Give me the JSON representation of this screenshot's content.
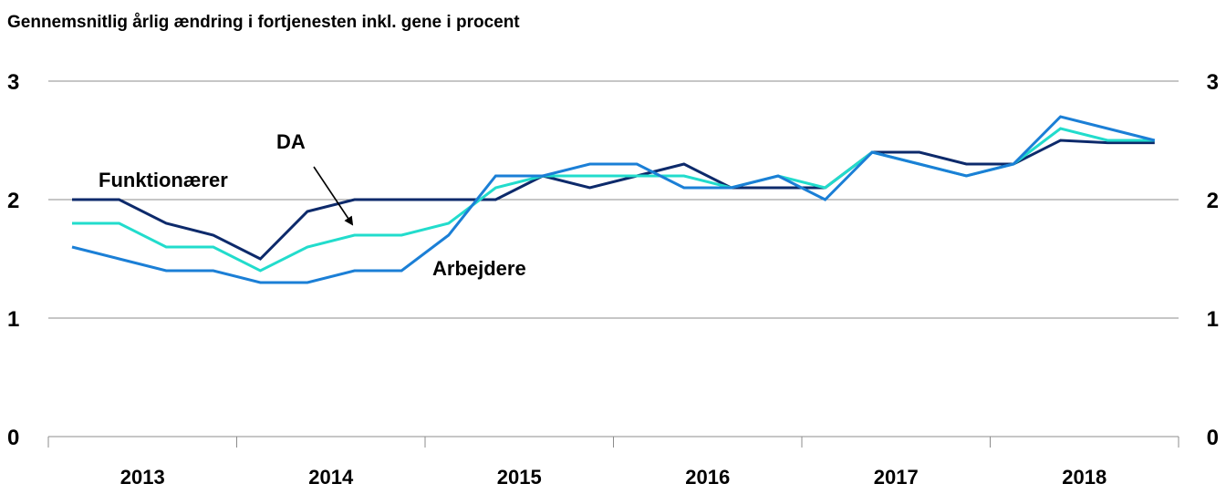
{
  "chart_data": {
    "type": "line",
    "title": "Gennemsnitlig årlig ændring i fortjenesten inkl. gene i procent",
    "xlabel": "",
    "ylabel": "",
    "ylim": [
      0,
      3
    ],
    "yticks": [
      "0",
      "1",
      "2",
      "3"
    ],
    "year_labels": [
      "2013",
      "2014",
      "2015",
      "2016",
      "2017",
      "2018"
    ],
    "x": [
      "2013K1",
      "2013K2",
      "2013K3",
      "2013K4",
      "2014K1",
      "2014K2",
      "2014K3",
      "2014K4",
      "2015K1",
      "2015K2",
      "2015K3",
      "2015K4",
      "2016K1",
      "2016K2",
      "2016K3",
      "2016K4",
      "2017K1",
      "2017K2",
      "2017K3",
      "2017K4",
      "2018K1",
      "2018K2",
      "2018K3",
      "2018K4"
    ],
    "grid": true,
    "legend": "none",
    "series": [
      {
        "name": "Funktionærer",
        "color": "#0d2a6b",
        "values": [
          2.0,
          2.0,
          1.8,
          1.7,
          1.5,
          1.9,
          2.0,
          2.0,
          2.0,
          2.0,
          2.2,
          2.1,
          2.2,
          2.3,
          2.1,
          2.1,
          2.1,
          2.4,
          2.4,
          2.3,
          2.3,
          2.5,
          2.48,
          2.48
        ]
      },
      {
        "name": "DA",
        "color": "#22dccc",
        "values": [
          1.8,
          1.8,
          1.6,
          1.6,
          1.4,
          1.6,
          1.7,
          1.7,
          1.8,
          2.1,
          2.2,
          2.2,
          2.2,
          2.2,
          2.1,
          2.2,
          2.1,
          2.4,
          2.3,
          2.2,
          2.3,
          2.6,
          2.5,
          2.5
        ]
      },
      {
        "name": "Arbejdere",
        "color": "#1b7fd6",
        "values": [
          1.6,
          1.5,
          1.4,
          1.4,
          1.3,
          1.3,
          1.4,
          1.4,
          1.7,
          2.2,
          2.2,
          2.3,
          2.3,
          2.1,
          2.1,
          2.2,
          2.0,
          2.4,
          2.3,
          2.2,
          2.3,
          2.7,
          2.6,
          2.5
        ]
      }
    ],
    "annotations": [
      {
        "text": "Funktionærer",
        "series": "Funktionærer"
      },
      {
        "text": "DA",
        "series": "DA",
        "arrow": true
      },
      {
        "text": "Arbejdere",
        "series": "Arbejdere"
      }
    ]
  }
}
